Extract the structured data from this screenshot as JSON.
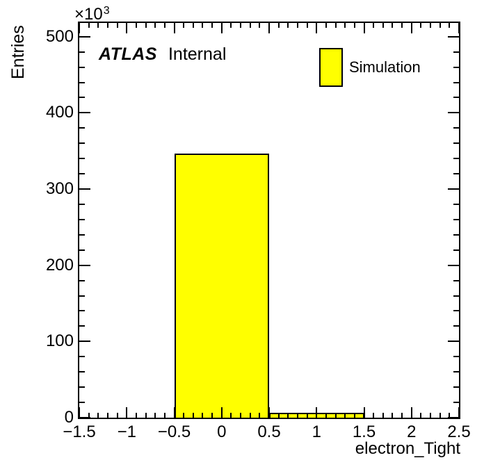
{
  "chart_data": {
    "type": "bar",
    "histogram": true,
    "title": "",
    "xlabel": "electron_Tight",
    "ylabel": "Entries",
    "y_axis_multiplier": {
      "base": "×10",
      "exp": "3"
    },
    "xlim": [
      -1.5,
      2.5
    ],
    "ylim": [
      0,
      518000
    ],
    "x_major_tick_values": [
      -1.5,
      -1,
      -0.5,
      0,
      0.5,
      1,
      1.5,
      2,
      2.5
    ],
    "x_tick_labels": [
      "−1.5",
      "−1",
      "−0.5",
      "0",
      "0.5",
      "1",
      "1.5",
      "2",
      "2.5"
    ],
    "x_minor_tick_step": 0.1,
    "y_major_tick_values": [
      0,
      100000,
      200000,
      300000,
      400000,
      500000
    ],
    "y_tick_labels": [
      "0",
      "100",
      "200",
      "300",
      "400",
      "500"
    ],
    "y_minor_tick_step": 20000,
    "grid": false,
    "frame_color": "#000000",
    "background_color": "#ffffff",
    "legend_position": "top-right",
    "series": [
      {
        "name": "Simulation",
        "fill_color": "#ffff00",
        "line_color": "#000000",
        "bins": [
          {
            "x_low": -1.5,
            "x_high": -0.5,
            "value": 0
          },
          {
            "x_low": -0.5,
            "x_high": 0.5,
            "value": 346500
          },
          {
            "x_low": 0.5,
            "x_high": 1.5,
            "value": 6500
          },
          {
            "x_low": 1.5,
            "x_high": 2.5,
            "value": 0
          }
        ]
      }
    ],
    "legend": {
      "entries": [
        {
          "label": "Simulation",
          "swatch_color": "#ffff00",
          "swatch_border": "#000000"
        }
      ]
    },
    "annotations": {
      "brand": "ATLAS",
      "status": "Internal"
    }
  }
}
